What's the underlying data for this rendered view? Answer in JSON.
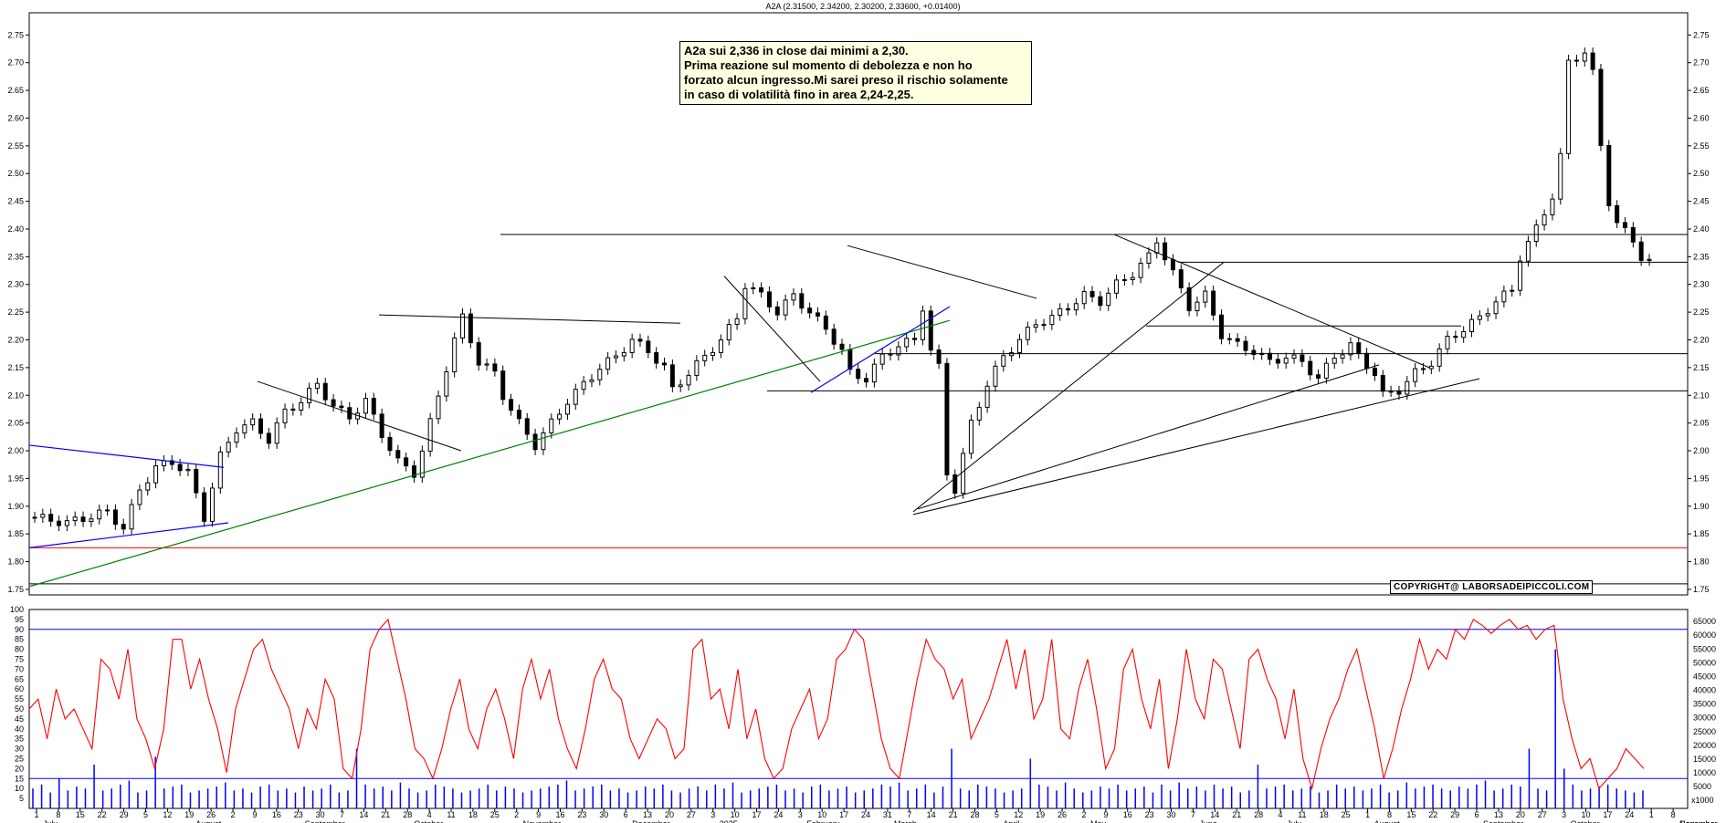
{
  "chart_data": [
    {
      "type": "candlestick",
      "title": "A2A (2.31500, 2.34200, 2.30200, 2.33600, +0.01400)",
      "ylim": [
        1.74,
        2.79
      ],
      "y_ticks": [
        "1.75",
        "1.80",
        "1.85",
        "1.90",
        "1.95",
        "2.00",
        "2.05",
        "2.10",
        "2.15",
        "2.20",
        "2.25",
        "2.30",
        "2.35",
        "2.40",
        "2.45",
        "2.50",
        "2.55",
        "2.60",
        "2.65",
        "2.70",
        "2.75"
      ],
      "close_path": [
        [
          0,
          1.88
        ],
        [
          4,
          1.87
        ],
        [
          9,
          1.89
        ],
        [
          11,
          1.86
        ],
        [
          13,
          1.93
        ],
        [
          15,
          1.97
        ],
        [
          17,
          1.98
        ],
        [
          19,
          1.96
        ],
        [
          21,
          1.88
        ],
        [
          23,
          1.99
        ],
        [
          25,
          2.04
        ],
        [
          27,
          2.05
        ],
        [
          29,
          2.02
        ],
        [
          31,
          2.07
        ],
        [
          33,
          2.09
        ],
        [
          35,
          2.12
        ],
        [
          37,
          2.08
        ],
        [
          39,
          2.06
        ],
        [
          41,
          2.09
        ],
        [
          43,
          2.03
        ],
        [
          45,
          1.98
        ],
        [
          47,
          1.96
        ],
        [
          48,
          2.0
        ],
        [
          50,
          2.1
        ],
        [
          52,
          2.2
        ],
        [
          53,
          2.24
        ],
        [
          55,
          2.16
        ],
        [
          57,
          2.14
        ],
        [
          58,
          2.1
        ],
        [
          60,
          2.05
        ],
        [
          62,
          2.01
        ],
        [
          64,
          2.05
        ],
        [
          66,
          2.09
        ],
        [
          68,
          2.12
        ],
        [
          70,
          2.15
        ],
        [
          72,
          2.17
        ],
        [
          74,
          2.2
        ],
        [
          76,
          2.18
        ],
        [
          78,
          2.15
        ],
        [
          79,
          2.11
        ],
        [
          81,
          2.14
        ],
        [
          83,
          2.17
        ],
        [
          85,
          2.2
        ],
        [
          87,
          2.24
        ],
        [
          88,
          2.3
        ],
        [
          90,
          2.28
        ],
        [
          92,
          2.25
        ],
        [
          94,
          2.28
        ],
        [
          96,
          2.25
        ],
        [
          98,
          2.22
        ],
        [
          100,
          2.18
        ],
        [
          101,
          2.14
        ],
        [
          103,
          2.13
        ],
        [
          105,
          2.17
        ],
        [
          107,
          2.19
        ],
        [
          109,
          2.2
        ],
        [
          110,
          2.26
        ],
        [
          111,
          2.18
        ],
        [
          112,
          2.15
        ],
        [
          113,
          1.96
        ],
        [
          114,
          1.93
        ],
        [
          116,
          2.05
        ],
        [
          118,
          2.12
        ],
        [
          120,
          2.17
        ],
        [
          122,
          2.2
        ],
        [
          124,
          2.23
        ],
        [
          126,
          2.24
        ],
        [
          128,
          2.26
        ],
        [
          130,
          2.28
        ],
        [
          132,
          2.27
        ],
        [
          134,
          2.3
        ],
        [
          136,
          2.32
        ],
        [
          138,
          2.35
        ],
        [
          139,
          2.38
        ],
        [
          141,
          2.32
        ],
        [
          143,
          2.26
        ],
        [
          145,
          2.28
        ],
        [
          147,
          2.21
        ],
        [
          149,
          2.19
        ],
        [
          151,
          2.18
        ],
        [
          153,
          2.16
        ],
        [
          155,
          2.17
        ],
        [
          157,
          2.16
        ],
        [
          159,
          2.13
        ],
        [
          161,
          2.17
        ],
        [
          163,
          2.19
        ],
        [
          164,
          2.17
        ],
        [
          166,
          2.14
        ],
        [
          167,
          2.1
        ],
        [
          169,
          2.11
        ],
        [
          171,
          2.14
        ],
        [
          173,
          2.16
        ],
        [
          175,
          2.2
        ],
        [
          177,
          2.22
        ],
        [
          179,
          2.24
        ],
        [
          181,
          2.27
        ],
        [
          183,
          2.29
        ],
        [
          184,
          2.35
        ],
        [
          186,
          2.4
        ],
        [
          188,
          2.46
        ],
        [
          189,
          2.53
        ],
        [
          190,
          2.7
        ],
        [
          192,
          2.72
        ],
        [
          193,
          2.68
        ],
        [
          194,
          2.55
        ],
        [
          195,
          2.45
        ],
        [
          196,
          2.41
        ],
        [
          198,
          2.38
        ],
        [
          199,
          2.35
        ],
        [
          200,
          2.34
        ]
      ],
      "x_dates_top": [
        "1",
        "8",
        "15",
        "22",
        "29",
        "5",
        "12",
        "19",
        "26",
        "2",
        "9",
        "16",
        "23",
        "30",
        "7",
        "14",
        "21",
        "28",
        "4",
        "11",
        "18",
        "25",
        "2",
        "9",
        "16",
        "23",
        "30",
        "6",
        "13",
        "20",
        "27",
        "3",
        "10",
        "17",
        "24",
        "3",
        "10",
        "17",
        "24",
        "31",
        "7",
        "14",
        "21",
        "28",
        "5",
        "12",
        "19",
        "26",
        "2",
        "9",
        "16",
        "23",
        "30",
        "7",
        "14",
        "21",
        "28",
        "4",
        "11",
        "18",
        "25",
        "1",
        "8",
        "15",
        "22",
        "29",
        "6",
        "13",
        "20",
        "27",
        "3",
        "10",
        "17",
        "24",
        "1",
        "8"
      ],
      "x_months": [
        "July",
        "August",
        "September",
        "October",
        "November",
        "December",
        "2025",
        "February",
        "March",
        "April",
        "May",
        "June",
        "July",
        "August",
        "September",
        "October",
        "November",
        "December"
      ]
    },
    {
      "type": "line",
      "ylim": [
        0,
        100
      ],
      "y_ticks_left": [
        "5",
        "10",
        "15",
        "20",
        "25",
        "30",
        "35",
        "40",
        "45",
        "50",
        "55",
        "60",
        "65",
        "70",
        "75",
        "80",
        "85",
        "90",
        "95",
        "100"
      ],
      "y_ticks_right": [
        "5000",
        "10000",
        "15000",
        "20000",
        "25000",
        "30000",
        "35000",
        "40000",
        "45000",
        "50000",
        "55000",
        "60000",
        "65000"
      ],
      "oscillator": [
        50,
        55,
        35,
        60,
        45,
        50,
        40,
        30,
        75,
        70,
        55,
        80,
        45,
        35,
        20,
        40,
        85,
        85,
        60,
        75,
        55,
        40,
        18,
        50,
        65,
        80,
        85,
        70,
        60,
        50,
        30,
        50,
        40,
        65,
        55,
        20,
        15,
        40,
        80,
        90,
        95,
        75,
        55,
        30,
        25,
        15,
        30,
        50,
        65,
        40,
        30,
        50,
        60,
        45,
        25,
        60,
        75,
        55,
        70,
        45,
        30,
        20,
        40,
        65,
        75,
        60,
        55,
        35,
        25,
        35,
        45,
        40,
        25,
        30,
        80,
        85,
        55,
        60,
        40,
        70,
        35,
        50,
        25,
        15,
        20,
        40,
        50,
        60,
        35,
        45,
        75,
        80,
        90,
        85,
        60,
        35,
        20,
        15,
        40,
        65,
        85,
        75,
        70,
        55,
        65,
        35,
        45,
        55,
        70,
        85,
        60,
        80,
        45,
        55,
        85,
        40,
        35,
        60,
        75,
        50,
        20,
        30,
        70,
        80,
        55,
        40,
        65,
        20,
        45,
        80,
        55,
        45,
        75,
        70,
        50,
        30,
        75,
        80,
        65,
        55,
        35,
        60,
        25,
        10,
        30,
        45,
        55,
        70,
        80,
        60,
        40,
        15,
        30,
        50,
        65,
        85,
        70,
        80,
        75,
        90,
        85,
        95,
        92,
        88,
        92,
        95,
        90,
        92,
        85,
        90,
        92,
        55,
        35,
        20,
        25,
        10,
        15,
        20,
        30,
        25,
        20
      ],
      "volume": [
        10,
        12,
        8,
        15,
        9,
        11,
        10,
        22,
        9,
        10,
        12,
        14,
        8,
        9,
        26,
        10,
        11,
        12,
        8,
        9,
        10,
        11,
        13,
        9,
        10,
        8,
        11,
        12,
        9,
        10,
        8,
        11,
        9,
        10,
        12,
        8,
        9,
        30,
        12,
        10,
        11,
        9,
        13,
        10,
        8,
        9,
        12,
        11,
        10,
        8,
        9,
        10,
        12,
        9,
        11,
        10,
        8,
        9,
        10,
        11,
        12,
        14,
        9,
        10,
        11,
        12,
        9,
        10,
        8,
        9,
        11,
        10,
        12,
        9,
        8,
        10,
        11,
        9,
        12,
        10,
        13,
        8,
        9,
        10,
        11,
        12,
        9,
        10,
        8,
        11,
        12,
        9,
        10,
        11,
        8,
        9,
        10,
        12,
        11,
        13,
        9,
        10,
        12,
        8,
        11,
        30,
        10,
        9,
        12,
        11,
        10,
        8,
        9,
        10,
        25,
        12,
        11,
        9,
        13,
        10,
        8,
        9,
        11,
        10,
        12,
        9,
        10,
        11,
        8,
        12,
        9,
        13,
        10,
        11,
        9,
        12,
        10,
        11,
        8,
        9,
        22,
        10,
        11,
        12,
        9,
        10,
        11,
        8,
        9,
        12,
        10,
        11,
        9,
        10,
        12,
        8,
        9,
        13,
        10,
        11,
        12,
        10,
        9,
        11,
        10,
        12,
        14,
        9,
        10,
        12,
        11,
        30,
        10,
        9,
        80,
        20,
        12,
        9,
        10,
        11,
        12,
        10,
        9,
        8,
        9
      ]
    }
  ],
  "annotation": {
    "text": "A2a  sui 2,336 in close dai minimi a 2,30.\nPrima reazione sul momento di debolezza e non ho\nforzato alcun ingresso.Mi sarei preso il rischio solamente\nin caso di volatilità fino in area 2,24-2,25."
  },
  "copyright": "COPYRIGHT@ LABORSADEIPICCOLI.COM",
  "oscillator_label": "x1000",
  "colors": {
    "price": "#000000",
    "oscillator": "#ff0000",
    "volume": "#0000ff",
    "trend_green": "#008000",
    "trend_blue": "#0000ff",
    "support_red": "#ff0000"
  }
}
